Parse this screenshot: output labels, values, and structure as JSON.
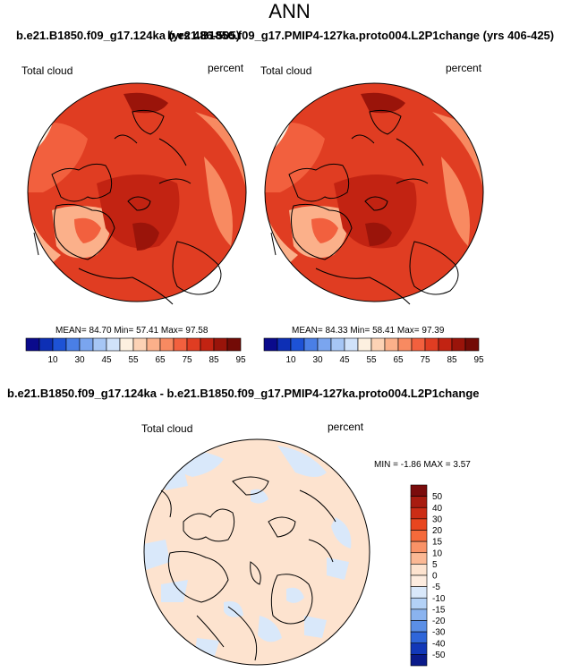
{
  "page_title": "ANN",
  "panel_1": {
    "overlap_title_a": "b.e21.B1850.f09_g17.124ka (yrs 486-505)",
    "overlap_title_b": "b.e21.B1850.f09_g17.PMIP4-127ka.proto004.L2P1change (yrs 406-425)"
  },
  "diff_title": "b.e21.B1850.f09_g17.124ka - b.e21.B1850.f09_g17.PMIP4-127ka.proto004.L2P1change",
  "chart_data": [
    {
      "type": "heatmap",
      "title": "",
      "variable": "Total cloud",
      "units": "percent",
      "projection": "north polar stereographic",
      "stats": {
        "mean": "84.70",
        "min": "57.41",
        "max": "97.58"
      },
      "stats_text": {
        "mean_label": "MEAN=",
        "min_label": "Min=",
        "max_label": "Max="
      },
      "colorbar": {
        "orientation": "horizontal",
        "tick_labels": [
          "10",
          "30",
          "45",
          "55",
          "65",
          "75",
          "85",
          "95"
        ],
        "colors": [
          "#0a0a8c",
          "#0d2fb5",
          "#1d52d6",
          "#4a7fe6",
          "#7aa5ef",
          "#a6c6f5",
          "#d0e2fa",
          "#fdf0e0",
          "#fcd2b5",
          "#fbb08a",
          "#f88a61",
          "#f2603e",
          "#e03d22",
          "#c22312",
          "#9a140a",
          "#730b06"
        ]
      }
    },
    {
      "type": "heatmap",
      "title": "",
      "variable": "Total cloud",
      "units": "percent",
      "projection": "north polar stereographic",
      "stats": {
        "mean": "84.33",
        "min": "58.41",
        "max": "97.39"
      },
      "stats_text": {
        "mean_label": "MEAN=",
        "min_label": "Min=",
        "max_label": "Max="
      },
      "colorbar": {
        "orientation": "horizontal",
        "tick_labels": [
          "10",
          "30",
          "45",
          "55",
          "65",
          "75",
          "85",
          "95"
        ],
        "colors": [
          "#0a0a8c",
          "#0d2fb5",
          "#1d52d6",
          "#4a7fe6",
          "#7aa5ef",
          "#a6c6f5",
          "#d0e2fa",
          "#fdf0e0",
          "#fcd2b5",
          "#fbb08a",
          "#f88a61",
          "#f2603e",
          "#e03d22",
          "#c22312",
          "#9a140a",
          "#730b06"
        ]
      }
    },
    {
      "type": "heatmap",
      "title": "",
      "variable": "Total cloud",
      "units": "percent",
      "projection": "north polar stereographic",
      "stats": {
        "min": "-1.86",
        "max": "3.57"
      },
      "stats_text": {
        "min_label": "MIN =",
        "max_label": "MAX ="
      },
      "colorbar": {
        "orientation": "vertical",
        "tick_labels": [
          "50",
          "40",
          "30",
          "20",
          "15",
          "10",
          "5",
          "0",
          "-5",
          "-10",
          "-15",
          "-20",
          "-30",
          "-40",
          "-50"
        ],
        "colors": [
          "#7a0c0c",
          "#a81c10",
          "#cc2d16",
          "#e8461f",
          "#f56a3b",
          "#f99267",
          "#fbb894",
          "#fde3cf",
          "#fdecdf",
          "#d9e8fa",
          "#b3d1f6",
          "#8ab3ef",
          "#5b8fe6",
          "#2f66d9",
          "#1238b8",
          "#0a1a8a"
        ]
      }
    }
  ]
}
